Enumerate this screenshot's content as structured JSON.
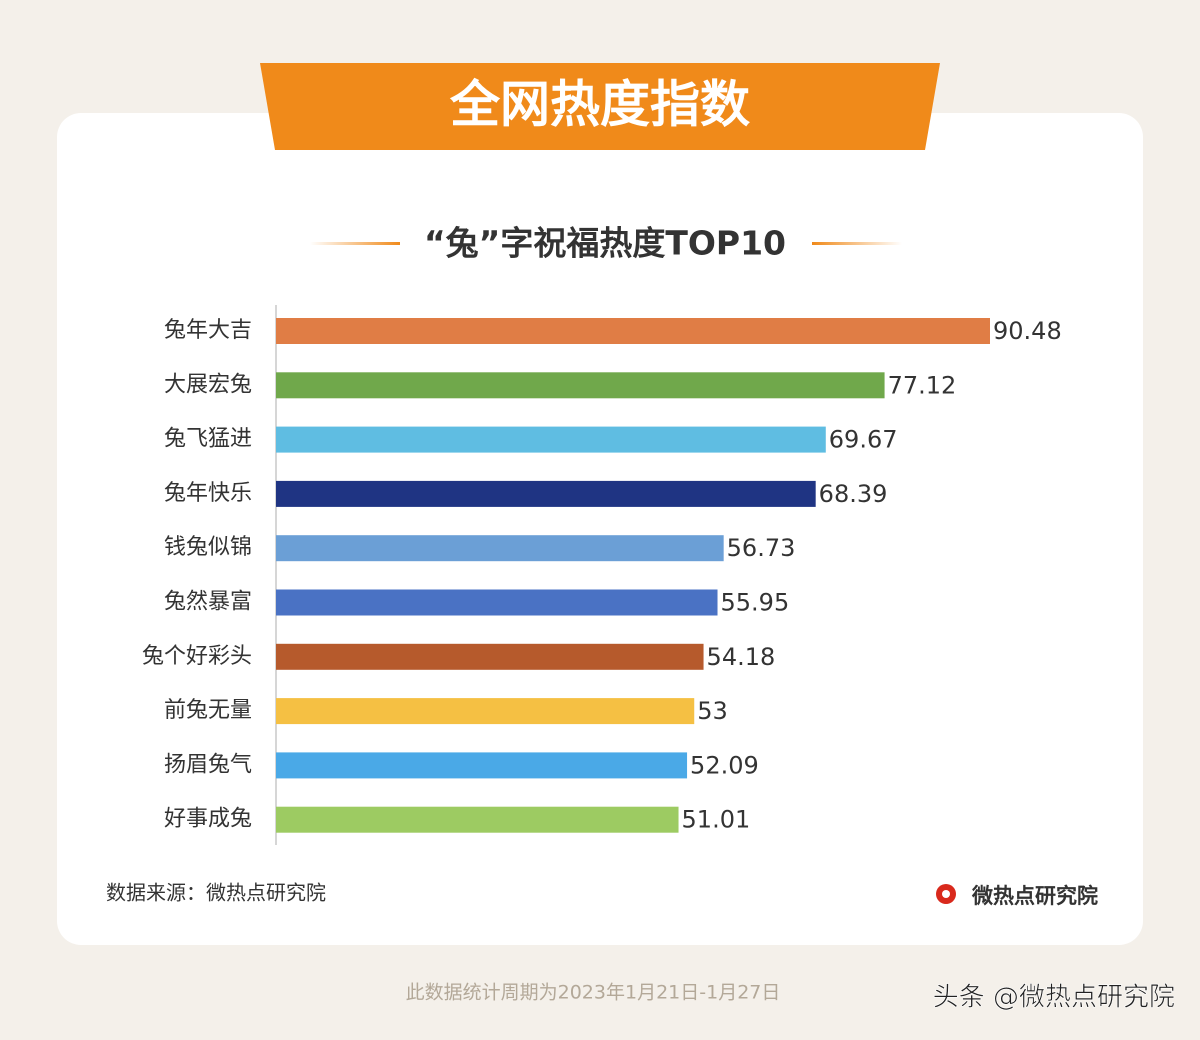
{
  "header": {
    "title": "全网热度指数"
  },
  "chart_data": {
    "type": "bar",
    "orientation": "horizontal",
    "title": "“兔”字祝福热度TOP10",
    "categories": [
      "兔年大吉",
      "大展宏兔",
      "兔飞猛进",
      "兔年快乐",
      "钱兔似锦",
      "兔然暴富",
      "兔个好彩头",
      "前兔无量",
      "扬眉兔气",
      "好事成兔"
    ],
    "values": [
      90.48,
      77.12,
      69.67,
      68.39,
      56.73,
      55.95,
      54.18,
      53,
      52.09,
      51.01
    ],
    "colors": [
      "#e07d45",
      "#70a84b",
      "#5fbde2",
      "#1f3483",
      "#6b9fd6",
      "#4a72c4",
      "#b65a2c",
      "#f5c043",
      "#4aa9e7",
      "#9dcb62"
    ]
  },
  "source": "数据来源：微热点研究院",
  "logo": "微热点研究院",
  "footnote": "此数据统计周期为2023年1月21日-1月27日",
  "watermark": "头条 @微热点研究院"
}
